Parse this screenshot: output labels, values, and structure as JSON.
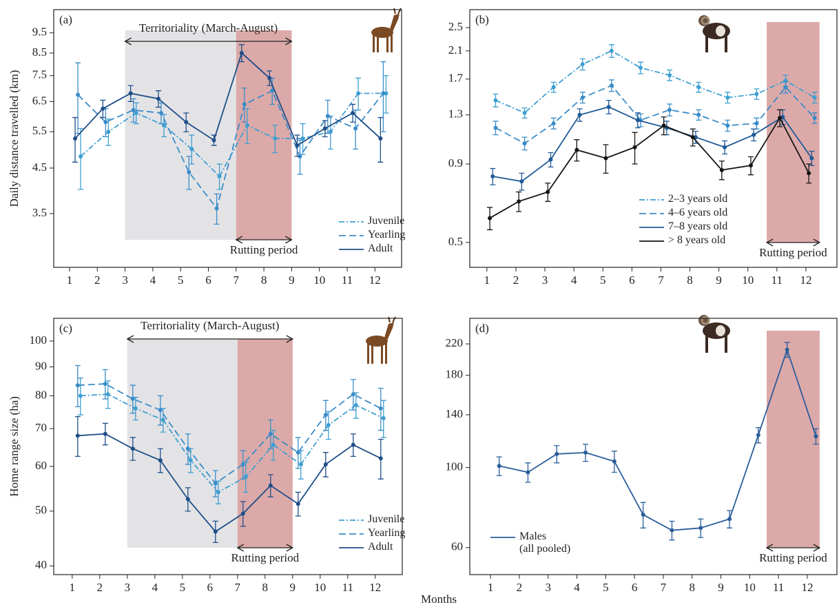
{
  "chart_data": [
    {
      "type": "line",
      "label": "(a)",
      "ylabel": "Daily distance travelled (km)",
      "log": true,
      "legend": "lower right",
      "xlim": [
        0.43,
        12.96
      ],
      "xticks": [
        1,
        2,
        3,
        4,
        5,
        6,
        7,
        8,
        9,
        10,
        11,
        12
      ],
      "ylim": [
        2.6,
        10.8
      ],
      "yticks": [
        3.5,
        4.5,
        5.5,
        6.5,
        7.5,
        8.5,
        9.5
      ],
      "bands": [
        {
          "x": [
            3,
            7
          ],
          "color": "#e3e3e6"
        },
        {
          "x": [
            7,
            9
          ],
          "color": "#dca9a9"
        }
      ],
      "annotations": [
        {
          "text": "Territoriality (March-August)",
          "x": [
            3,
            9
          ],
          "position": "top"
        },
        {
          "text": "Rutting period",
          "x": [
            7,
            9
          ],
          "position": "bottom"
        }
      ],
      "series": [
        {
          "name": "Juvenile",
          "color": "#3d9fd1",
          "style": "dashdot",
          "x": [
            1.4,
            2.4,
            3.4,
            4.4,
            5.4,
            6.4,
            7.4,
            8.4,
            9.4,
            10.4,
            11.4,
            12.4
          ],
          "values": [
            4.8,
            5.5,
            6.1,
            5.7,
            5.0,
            4.3,
            5.7,
            5.3,
            5.3,
            5.5,
            6.8,
            6.8
          ],
          "errors": [
            0.8,
            0.4,
            0.35,
            0.35,
            0.4,
            0.3,
            0.55,
            0.4,
            0.45,
            0.5,
            0.6,
            0.7
          ]
        },
        {
          "name": "Yearling",
          "color": "#3a8cc8",
          "style": "dashed",
          "x": [
            1.3,
            2.3,
            3.3,
            4.3,
            5.3,
            6.3,
            7.3,
            8.3,
            9.3,
            10.3,
            11.3,
            12.3
          ],
          "values": [
            6.75,
            5.8,
            6.2,
            6.1,
            4.4,
            3.6,
            6.4,
            6.9,
            4.8,
            6.0,
            5.6,
            6.8
          ],
          "errors": [
            1.3,
            0.45,
            0.4,
            0.35,
            0.4,
            0.3,
            0.6,
            0.5,
            0.45,
            0.55,
            0.6,
            1.3
          ]
        },
        {
          "name": "Adult",
          "color": "#1f4e88",
          "style": "solid",
          "x": [
            1.2,
            2.2,
            3.2,
            4.2,
            5.2,
            6.2,
            7.2,
            8.2,
            9.2,
            10.2,
            11.2,
            12.2
          ],
          "values": [
            5.3,
            6.25,
            6.8,
            6.6,
            5.8,
            5.25,
            8.5,
            7.4,
            5.1,
            5.6,
            6.1,
            5.3
          ],
          "errors": [
            0.65,
            0.3,
            0.3,
            0.3,
            0.3,
            0.15,
            0.4,
            0.3,
            0.3,
            0.25,
            0.3,
            0.65
          ]
        }
      ]
    },
    {
      "type": "line",
      "label": "(b)",
      "log": true,
      "legend": "lower center",
      "xlim": [
        0.41,
        13.07
      ],
      "xticks": [
        1,
        2,
        3,
        4,
        5,
        6,
        7,
        8,
        9,
        10,
        11,
        12
      ],
      "ylim": [
        0.415,
        2.86
      ],
      "yticks": [
        0.5,
        0.9,
        1.3,
        1.7,
        2.1,
        2.5
      ],
      "bands": [
        {
          "x": [
            10.65,
            12.47
          ],
          "color": "#dca9a9"
        }
      ],
      "annotations": [
        {
          "text": "Rutting period",
          "x": [
            10.65,
            12.47
          ],
          "position": "bottom"
        }
      ],
      "series": [
        {
          "name": "2–3 years old",
          "color": "#3d9fd1",
          "style": "dashdot",
          "x": [
            1.3,
            2.3,
            3.3,
            4.3,
            5.3,
            6.3,
            7.3,
            8.3,
            9.3,
            10.3,
            11.3,
            12.3
          ],
          "values": [
            1.45,
            1.32,
            1.6,
            1.9,
            2.1,
            1.85,
            1.75,
            1.6,
            1.48,
            1.52,
            1.68,
            1.48
          ],
          "errors": [
            0.07,
            0.05,
            0.06,
            0.08,
            0.1,
            0.08,
            0.07,
            0.06,
            0.06,
            0.06,
            0.07,
            0.06
          ]
        },
        {
          "name": "4–6 years old",
          "color": "#3a8cc8",
          "style": "dashed",
          "x": [
            1.3,
            2.3,
            3.3,
            4.3,
            5.3,
            6.3,
            7.3,
            8.3,
            9.3,
            10.3,
            11.3,
            12.3
          ],
          "values": [
            1.18,
            1.05,
            1.22,
            1.48,
            1.62,
            1.25,
            1.35,
            1.3,
            1.2,
            1.22,
            1.6,
            1.27
          ],
          "errors": [
            0.06,
            0.05,
            0.05,
            0.06,
            0.07,
            0.06,
            0.06,
            0.05,
            0.05,
            0.05,
            0.07,
            0.05
          ]
        },
        {
          "name": "7–8 years old",
          "color": "#1f5a96",
          "style": "solid",
          "x": [
            1.2,
            2.2,
            3.2,
            4.2,
            5.2,
            6.2,
            7.2,
            8.2,
            9.2,
            10.2,
            11.2,
            12.2
          ],
          "values": [
            0.82,
            0.79,
            0.93,
            1.3,
            1.38,
            1.25,
            1.18,
            1.1,
            1.02,
            1.12,
            1.28,
            0.94
          ],
          "errors": [
            0.05,
            0.05,
            0.05,
            0.06,
            0.07,
            0.07,
            0.06,
            0.05,
            0.05,
            0.05,
            0.07,
            0.05
          ]
        },
        {
          "name": "> 8 years old",
          "color": "#151515",
          "style": "solid",
          "x": [
            1.1,
            2.1,
            3.1,
            4.1,
            5.1,
            6.1,
            7.1,
            8.1,
            9.1,
            10.1,
            11.1,
            12.1
          ],
          "values": [
            0.6,
            0.68,
            0.73,
            1.0,
            0.94,
            1.02,
            1.2,
            1.1,
            0.86,
            0.89,
            1.27,
            0.84
          ],
          "errors": [
            0.05,
            0.05,
            0.05,
            0.08,
            0.1,
            0.12,
            0.08,
            0.07,
            0.06,
            0.06,
            0.08,
            0.06
          ]
        }
      ]
    },
    {
      "type": "line",
      "label": "(c)",
      "ylabel": "Home range size (ha)",
      "xlabel": "Months",
      "log": true,
      "legend": "lower right",
      "xlim": [
        0.33,
        12.98
      ],
      "xticks": [
        1,
        2,
        3,
        4,
        5,
        6,
        7,
        8,
        9,
        10,
        11,
        12
      ],
      "ylim": [
        38.6,
        109.7
      ],
      "yticks": [
        40,
        50,
        60,
        70,
        80,
        90,
        100
      ],
      "bands": [
        {
          "x": [
            3,
            7
          ],
          "color": "#e3e3e6"
        },
        {
          "x": [
            7,
            9
          ],
          "color": "#dca9a9"
        }
      ],
      "annotations": [
        {
          "text": "Territoriality (March-August)",
          "x": [
            3,
            9
          ],
          "position": "top"
        },
        {
          "text": "Rutting period",
          "x": [
            7,
            9
          ],
          "position": "bottom"
        }
      ],
      "series": [
        {
          "name": "Juvenile",
          "color": "#3d9fd1",
          "style": "dashdot",
          "x": [
            1.3,
            2.3,
            3.3,
            4.3,
            5.3,
            6.3,
            7.3,
            8.3,
            9.3,
            10.3,
            11.3,
            12.3
          ],
          "values": [
            80,
            80.5,
            76,
            72.5,
            61.5,
            54,
            57.5,
            65.5,
            60.5,
            71,
            77,
            73
          ],
          "errors": [
            6,
            4.5,
            3.5,
            3.5,
            3,
            2.5,
            3.5,
            4,
            3.5,
            4,
            4,
            5.5
          ]
        },
        {
          "name": "Yearling",
          "color": "#3a8cc8",
          "style": "dashed",
          "x": [
            1.2,
            2.2,
            3.2,
            4.2,
            5.2,
            6.2,
            7.2,
            8.2,
            9.2,
            10.2,
            11.2,
            12.2
          ],
          "values": [
            83.5,
            84,
            79,
            75.5,
            64.5,
            56,
            60.5,
            68.5,
            63.5,
            74,
            80.5,
            76
          ],
          "errors": [
            7,
            5,
            4.5,
            4.5,
            4,
            3,
            3.5,
            4,
            4,
            4.5,
            5,
            6.5
          ]
        },
        {
          "name": "Adult",
          "color": "#1f4e88",
          "style": "solid",
          "x": [
            1.2,
            2.2,
            3.2,
            4.2,
            5.2,
            6.2,
            7.2,
            8.2,
            9.2,
            10.2,
            11.2,
            12.2
          ],
          "values": [
            68,
            68.5,
            64.5,
            61.5,
            52.5,
            46,
            49.5,
            55.5,
            51.5,
            60.5,
            65.5,
            62
          ],
          "errors": [
            5.5,
            3,
            3,
            3,
            2.5,
            2,
            2.5,
            2.5,
            2.5,
            3,
            3,
            5
          ]
        }
      ]
    },
    {
      "type": "line",
      "label": "(d)",
      "log": true,
      "legend": "lower left",
      "xlim": [
        0.28,
        13.03
      ],
      "xticks": [
        1,
        2,
        3,
        4,
        5,
        6,
        7,
        8,
        9,
        10,
        11,
        12
      ],
      "ylim": [
        50.5,
        259
      ],
      "yticks": [
        60,
        100,
        140,
        180,
        220
      ],
      "bands": [
        {
          "x": [
            10.59,
            12.43
          ],
          "color": "#dca9a9"
        }
      ],
      "annotations": [
        {
          "text": "Rutting period",
          "x": [
            10.59,
            12.43
          ],
          "position": "bottom"
        }
      ],
      "series": [
        {
          "name": "Males\n(all pooled)",
          "color": "#2a5d9a",
          "style": "solid",
          "x": [
            1.3,
            2.3,
            3.3,
            4.3,
            5.3,
            6.3,
            7.3,
            8.3,
            9.3,
            10.3,
            11.3,
            12.3
          ],
          "values": [
            101,
            97,
            109,
            110,
            104,
            74,
            67,
            68,
            72,
            123,
            212,
            122
          ],
          "errors": [
            6,
            6,
            6,
            6,
            7,
            6,
            4,
            4,
            4,
            6,
            10,
            6
          ]
        }
      ]
    }
  ]
}
